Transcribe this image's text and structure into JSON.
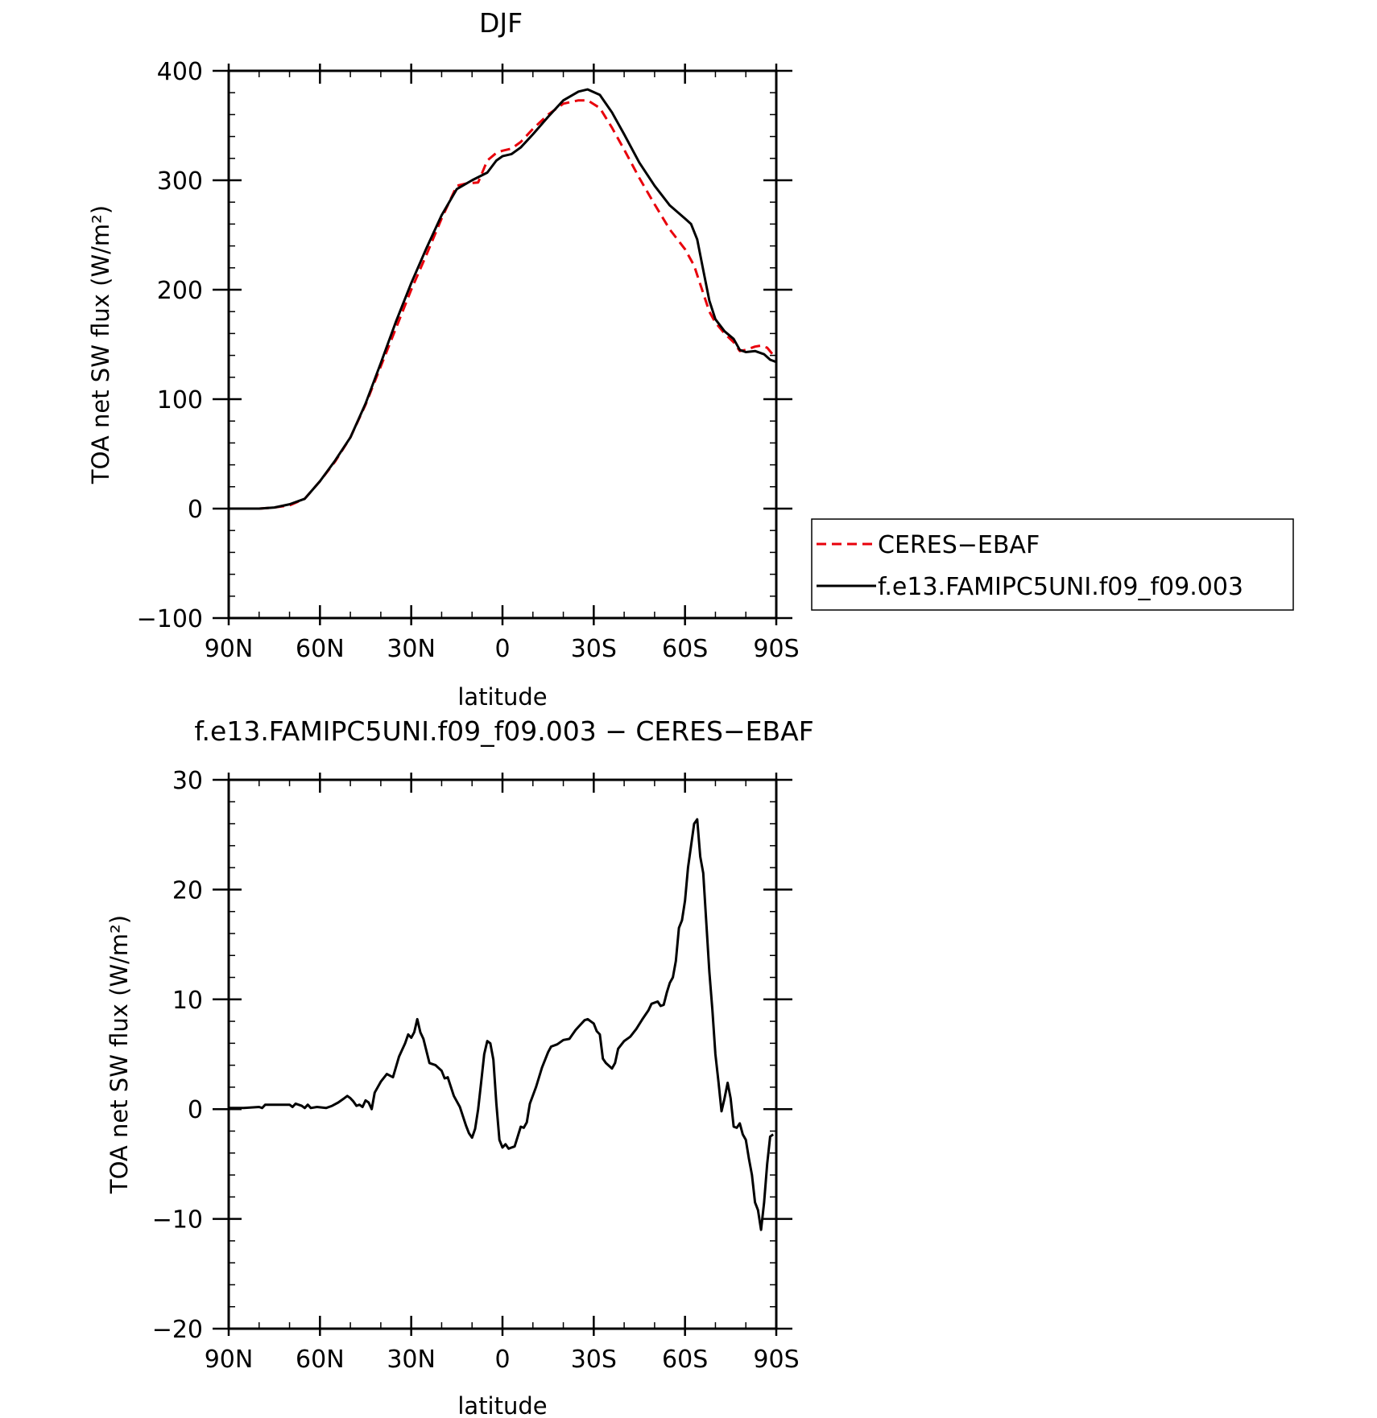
{
  "chart_data": [
    {
      "type": "line",
      "title": "DJF",
      "xlabel": "latitude",
      "ylabel": "TOA net SW flux (W/m²)",
      "xlim": [
        90,
        -90
      ],
      "ylim": [
        -100,
        400
      ],
      "xticks": [
        {
          "value": 90,
          "label": "90N"
        },
        {
          "value": 60,
          "label": "60N"
        },
        {
          "value": 30,
          "label": "30N"
        },
        {
          "value": 0,
          "label": "0"
        },
        {
          "value": -30,
          "label": "30S"
        },
        {
          "value": -60,
          "label": "60S"
        },
        {
          "value": -90,
          "label": "90S"
        }
      ],
      "yticks": [
        -100,
        0,
        100,
        200,
        300,
        400
      ],
      "grid": false,
      "legend": {
        "placement": "right",
        "entries": [
          {
            "name": "CERES−EBAF",
            "color": "#e8000b",
            "dash": "dashed"
          },
          {
            "name": "f.e13.FAMIPC5UNI.f09_f09.003",
            "color": "#000000",
            "dash": "solid"
          }
        ]
      },
      "series": [
        {
          "name": "CERES−EBAF",
          "color": "#e8000b",
          "dash": "dashed",
          "points": [
            [
              90,
              0
            ],
            [
              85,
              0
            ],
            [
              80,
              0
            ],
            [
              75,
              1
            ],
            [
              70,
              3
            ],
            [
              65,
              9
            ],
            [
              60,
              25
            ],
            [
              55,
              43
            ],
            [
              50,
              65
            ],
            [
              45,
              95
            ],
            [
              40,
              130
            ],
            [
              35,
              165
            ],
            [
              30,
              200
            ],
            [
              25,
              232
            ],
            [
              20,
              265
            ],
            [
              15,
              295
            ],
            [
              12,
              297
            ],
            [
              8,
              298
            ],
            [
              5,
              318
            ],
            [
              2,
              325
            ],
            [
              0,
              327
            ],
            [
              -3,
              329
            ],
            [
              -6,
              335
            ],
            [
              -10,
              347
            ],
            [
              -15,
              360
            ],
            [
              -20,
              370
            ],
            [
              -25,
              373
            ],
            [
              -28,
              373
            ],
            [
              -32,
              366
            ],
            [
              -36,
              348
            ],
            [
              -40,
              328
            ],
            [
              -45,
              302
            ],
            [
              -50,
              278
            ],
            [
              -55,
              255
            ],
            [
              -60,
              237
            ],
            [
              -63,
              222
            ],
            [
              -65,
              205
            ],
            [
              -68,
              180
            ],
            [
              -70,
              170
            ],
            [
              -73,
              160
            ],
            [
              -76,
              152
            ],
            [
              -78,
              144
            ],
            [
              -80,
              145
            ],
            [
              -83,
              148
            ],
            [
              -85,
              149
            ],
            [
              -87,
              147
            ],
            [
              -90,
              137
            ]
          ]
        },
        {
          "name": "f.e13.FAMIPC5UNI.f09_f09.003",
          "color": "#000000",
          "dash": "solid",
          "points": [
            [
              90,
              0
            ],
            [
              85,
              0
            ],
            [
              80,
              0
            ],
            [
              75,
              1
            ],
            [
              70,
              4
            ],
            [
              65,
              9
            ],
            [
              60,
              25
            ],
            [
              55,
              44
            ],
            [
              50,
              65
            ],
            [
              45,
              96
            ],
            [
              40,
              133
            ],
            [
              35,
              171
            ],
            [
              30,
              206
            ],
            [
              25,
              238
            ],
            [
              20,
              268
            ],
            [
              15,
              292
            ],
            [
              10,
              300
            ],
            [
              5,
              307
            ],
            [
              2,
              318
            ],
            [
              0,
              322
            ],
            [
              -3,
              324
            ],
            [
              -6,
              330
            ],
            [
              -10,
              342
            ],
            [
              -15,
              358
            ],
            [
              -20,
              373
            ],
            [
              -25,
              381
            ],
            [
              -28,
              383
            ],
            [
              -32,
              378
            ],
            [
              -36,
              362
            ],
            [
              -40,
              342
            ],
            [
              -45,
              316
            ],
            [
              -50,
              295
            ],
            [
              -55,
              277
            ],
            [
              -60,
              265
            ],
            [
              -62,
              260
            ],
            [
              -64,
              246
            ],
            [
              -66,
              218
            ],
            [
              -68,
              190
            ],
            [
              -70,
              173
            ],
            [
              -73,
              162
            ],
            [
              -76,
              155
            ],
            [
              -78,
              145
            ],
            [
              -80,
              143
            ],
            [
              -83,
              144
            ],
            [
              -86,
              141
            ],
            [
              -88,
              136
            ],
            [
              -90,
              134
            ]
          ]
        }
      ]
    },
    {
      "type": "line",
      "title": "f.e13.FAMIPC5UNI.f09_f09.003 − CERES−EBAF",
      "xlabel": "latitude",
      "ylabel": "TOA net SW flux (W/m²)",
      "xlim": [
        90,
        -90
      ],
      "ylim": [
        -20,
        30
      ],
      "xticks": [
        {
          "value": 90,
          "label": "90N"
        },
        {
          "value": 60,
          "label": "60N"
        },
        {
          "value": 30,
          "label": "30N"
        },
        {
          "value": 0,
          "label": "0"
        },
        {
          "value": -30,
          "label": "30S"
        },
        {
          "value": -60,
          "label": "60S"
        },
        {
          "value": -90,
          "label": "90S"
        }
      ],
      "yticks": [
        -20,
        -10,
        0,
        10,
        20,
        30
      ],
      "grid": false,
      "series": [
        {
          "color": "#000000",
          "dash": "solid",
          "points": [
            [
              90,
              0.1
            ],
            [
              85,
              0.1
            ],
            [
              80,
              0.2
            ],
            [
              79,
              0.1
            ],
            [
              78,
              0.4
            ],
            [
              75,
              0.4
            ],
            [
              70,
              0.4
            ],
            [
              69,
              0.2
            ],
            [
              68,
              0.5
            ],
            [
              66,
              0.3
            ],
            [
              65,
              0.1
            ],
            [
              64,
              0.4
            ],
            [
              63,
              0.1
            ],
            [
              61,
              0.2
            ],
            [
              58,
              0.1
            ],
            [
              56,
              0.3
            ],
            [
              54,
              0.6
            ],
            [
              52,
              1.0
            ],
            [
              51,
              1.2
            ],
            [
              50,
              1.0
            ],
            [
              49,
              0.7
            ],
            [
              48,
              0.3
            ],
            [
              47,
              0.4
            ],
            [
              46,
              0.2
            ],
            [
              45,
              0.8
            ],
            [
              44,
              0.6
            ],
            [
              43,
              0.0
            ],
            [
              42,
              1.5
            ],
            [
              40,
              2.5
            ],
            [
              38,
              3.2
            ],
            [
              36,
              2.9
            ],
            [
              34,
              4.8
            ],
            [
              32,
              6.0
            ],
            [
              31,
              6.8
            ],
            [
              30,
              6.5
            ],
            [
              29,
              7.0
            ],
            [
              28,
              8.2
            ],
            [
              27,
              7.0
            ],
            [
              26,
              6.4
            ],
            [
              24,
              4.2
            ],
            [
              22,
              4.0
            ],
            [
              20,
              3.5
            ],
            [
              19,
              2.8
            ],
            [
              18,
              2.9
            ],
            [
              16,
              1.2
            ],
            [
              14,
              0.2
            ],
            [
              12,
              -1.5
            ],
            [
              11,
              -2.2
            ],
            [
              10,
              -2.6
            ],
            [
              9,
              -1.8
            ],
            [
              8,
              0.0
            ],
            [
              7,
              2.5
            ],
            [
              6,
              5.0
            ],
            [
              5,
              6.2
            ],
            [
              4,
              6.0
            ],
            [
              3,
              4.5
            ],
            [
              2,
              0.5
            ],
            [
              1,
              -2.8
            ],
            [
              0,
              -3.5
            ],
            [
              -1,
              -3.2
            ],
            [
              -2,
              -3.6
            ],
            [
              -3,
              -3.5
            ],
            [
              -4,
              -3.4
            ],
            [
              -5,
              -2.5
            ],
            [
              -6,
              -1.6
            ],
            [
              -7,
              -1.7
            ],
            [
              -8,
              -1.2
            ],
            [
              -9,
              0.5
            ],
            [
              -11,
              2.0
            ],
            [
              -13,
              3.8
            ],
            [
              -15,
              5.2
            ],
            [
              -16,
              5.7
            ],
            [
              -18,
              5.9
            ],
            [
              -20,
              6.3
            ],
            [
              -22,
              6.4
            ],
            [
              -24,
              7.2
            ],
            [
              -25,
              7.5
            ],
            [
              -27,
              8.1
            ],
            [
              -28,
              8.2
            ],
            [
              -30,
              7.8
            ],
            [
              -31,
              7.1
            ],
            [
              -32,
              6.8
            ],
            [
              -33,
              4.6
            ],
            [
              -34,
              4.2
            ],
            [
              -36,
              3.7
            ],
            [
              -37,
              4.2
            ],
            [
              -38,
              5.5
            ],
            [
              -40,
              6.2
            ],
            [
              -42,
              6.6
            ],
            [
              -44,
              7.3
            ],
            [
              -46,
              8.2
            ],
            [
              -48,
              9.0
            ],
            [
              -49,
              9.6
            ],
            [
              -51,
              9.8
            ],
            [
              -52,
              9.4
            ],
            [
              -53,
              9.5
            ],
            [
              -54,
              10.6
            ],
            [
              -55,
              11.5
            ],
            [
              -56,
              12.0
            ],
            [
              -57,
              13.5
            ],
            [
              -58,
              16.5
            ],
            [
              -59,
              17.2
            ],
            [
              -60,
              19.0
            ],
            [
              -61,
              22.0
            ],
            [
              -62,
              24.0
            ],
            [
              -63,
              26.0
            ],
            [
              -64,
              26.4
            ],
            [
              -65,
              23.0
            ],
            [
              -66,
              21.5
            ],
            [
              -67,
              17.0
            ],
            [
              -68,
              12.5
            ],
            [
              -69,
              9.0
            ],
            [
              -70,
              5.0
            ],
            [
              -71,
              2.5
            ],
            [
              -72,
              -0.2
            ],
            [
              -73,
              1.0
            ],
            [
              -74,
              2.4
            ],
            [
              -75,
              1.0
            ],
            [
              -76,
              -1.6
            ],
            [
              -77,
              -1.7
            ],
            [
              -78,
              -1.3
            ],
            [
              -79,
              -2.3
            ],
            [
              -80,
              -2.8
            ],
            [
              -81,
              -4.5
            ],
            [
              -82,
              -6.0
            ],
            [
              -83,
              -8.5
            ],
            [
              -84,
              -9.2
            ],
            [
              -85,
              -11.0
            ],
            [
              -86,
              -8.5
            ],
            [
              -87,
              -5.0
            ],
            [
              -88,
              -2.5
            ],
            [
              -89,
              -2.3
            ]
          ]
        }
      ]
    }
  ]
}
